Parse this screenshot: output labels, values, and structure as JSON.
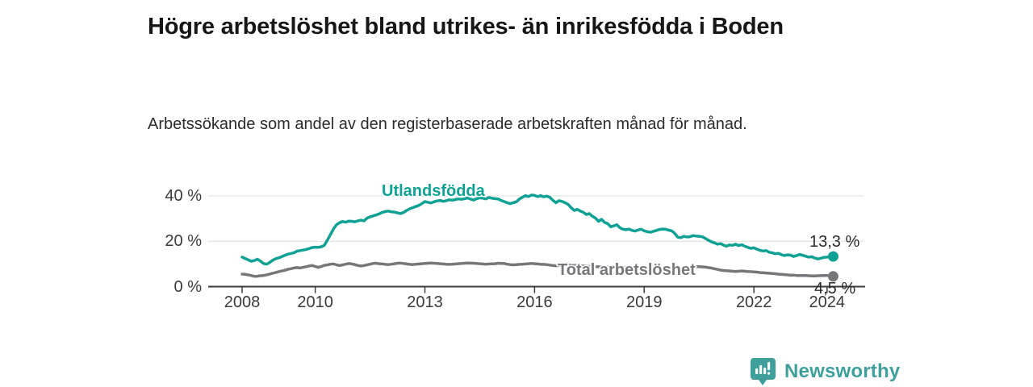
{
  "header": {
    "title": "Högre arbetslöshet bland utrikes- än inrikesfödda i Boden",
    "subtitle": "Arbetssökande som andel av den registerbaserade arbetskraften månad för månad."
  },
  "chart_data": {
    "type": "line",
    "title": "Högre arbetslöshet bland utrikes- än inrikesfödda i Boden",
    "xlabel": "",
    "ylabel": "",
    "unit": "%",
    "grid": "horizontal-gridlines-at-20-and-40",
    "legend_position": "inline-labels-on-lines",
    "xlim": [
      2007.2,
      2025.0
    ],
    "ylim": [
      0,
      45
    ],
    "x_cadence": "monthly",
    "y_ticks": [
      {
        "value": 0,
        "label": "0 %"
      },
      {
        "value": 20,
        "label": "20 %"
      },
      {
        "value": 40,
        "label": "40 %"
      }
    ],
    "x_ticks": [
      {
        "value": 2008,
        "label": "2008"
      },
      {
        "value": 2010,
        "label": "2010"
      },
      {
        "value": 2013,
        "label": "2013"
      },
      {
        "value": 2016,
        "label": "2016"
      },
      {
        "value": 2019,
        "label": "2019"
      },
      {
        "value": 2022,
        "label": "2022"
      },
      {
        "value": 2024,
        "label": "2024"
      }
    ],
    "series": [
      {
        "id": "utlandsfodda",
        "name": "Utlandsfödda",
        "color": "#0fa294",
        "end_label": "13,3 %",
        "end_value": 13.3,
        "x_start": 2008.0,
        "values": [
          13.0,
          12.4,
          11.8,
          11.2,
          11.5,
          12.1,
          11.3,
          10.2,
          9.9,
          10.6,
          11.6,
          12.3,
          12.7,
          13.2,
          13.8,
          14.3,
          14.6,
          14.9,
          15.6,
          15.9,
          16.1,
          16.4,
          16.8,
          17.2,
          17.4,
          17.3,
          17.6,
          18.2,
          20.5,
          23.0,
          25.5,
          27.3,
          28.2,
          28.7,
          28.4,
          28.9,
          28.8,
          28.6,
          29.0,
          29.3,
          29.0,
          30.2,
          30.8,
          31.2,
          31.6,
          32.1,
          32.7,
          33.1,
          33.3,
          33.0,
          32.9,
          32.5,
          32.2,
          32.7,
          33.6,
          34.3,
          34.8,
          35.3,
          35.8,
          36.6,
          37.5,
          37.2,
          36.9,
          37.4,
          37.8,
          38.0,
          37.6,
          37.9,
          38.3,
          38.1,
          38.4,
          38.7,
          38.5,
          38.8,
          39.1,
          38.6,
          38.2,
          38.8,
          39.2,
          39.0,
          38.7,
          39.3,
          39.0,
          38.8,
          38.7,
          38.0,
          37.5,
          37.0,
          36.6,
          37.0,
          37.4,
          38.6,
          39.4,
          40.1,
          39.7,
          40.4,
          40.2,
          39.7,
          40.1,
          39.6,
          39.9,
          39.4,
          38.1,
          37.0,
          37.9,
          37.6,
          37.0,
          36.3,
          34.8,
          33.6,
          34.1,
          33.3,
          32.8,
          31.8,
          32.2,
          31.0,
          30.2,
          28.8,
          29.7,
          28.3,
          27.8,
          26.4,
          26.8,
          27.3,
          26.0,
          25.3,
          25.1,
          25.4,
          24.8,
          24.5,
          25.0,
          25.3,
          24.6,
          24.2,
          24.0,
          24.4,
          24.8,
          25.2,
          25.4,
          25.3,
          24.9,
          24.6,
          23.5,
          21.8,
          21.6,
          22.2,
          21.9,
          22.0,
          22.5,
          22.3,
          22.2,
          22.0,
          21.3,
          20.5,
          19.8,
          19.3,
          18.7,
          19.0,
          18.3,
          17.8,
          18.4,
          18.2,
          18.7,
          18.1,
          18.5,
          17.8,
          17.3,
          16.9,
          17.1,
          16.5,
          16.0,
          15.7,
          15.9,
          15.2,
          14.9,
          14.5,
          14.7,
          14.1,
          13.7,
          14.0,
          13.9,
          13.3,
          13.7,
          14.2,
          13.8,
          13.4,
          13.0,
          13.2,
          12.6,
          12.2,
          12.5,
          12.9,
          13.0,
          13.2,
          13.3
        ]
      },
      {
        "id": "total",
        "name": "Total arbetslöshet",
        "color": "#77777b",
        "end_label": "4,5 %",
        "end_value": 4.5,
        "x_start": 2008.0,
        "values": [
          5.5,
          5.4,
          5.2,
          4.9,
          4.5,
          4.6,
          4.8,
          4.9,
          5.2,
          5.5,
          5.9,
          6.2,
          6.6,
          6.9,
          7.2,
          7.6,
          7.9,
          8.2,
          8.4,
          8.2,
          8.5,
          8.8,
          9.1,
          9.3,
          8.9,
          8.5,
          8.9,
          9.4,
          9.6,
          9.9,
          10.0,
          9.6,
          9.3,
          9.6,
          9.9,
          10.2,
          10.0,
          9.7,
          9.3,
          9.1,
          9.3,
          9.6,
          9.9,
          10.2,
          10.3,
          10.1,
          10.0,
          9.8,
          9.7,
          9.9,
          10.1,
          10.3,
          10.4,
          10.2,
          10.0,
          9.8,
          9.7,
          9.9,
          10.0,
          10.1,
          10.2,
          10.3,
          10.4,
          10.3,
          10.2,
          10.1,
          10.0,
          9.9,
          9.8,
          9.9,
          10.0,
          10.1,
          10.2,
          10.3,
          10.4,
          10.35,
          10.3,
          10.2,
          10.1,
          10.0,
          9.9,
          10.0,
          10.05,
          10.1,
          10.3,
          10.25,
          10.2,
          9.9,
          9.7,
          9.6,
          9.7,
          9.8,
          9.9,
          10.0,
          10.1,
          10.2,
          10.1,
          10.0,
          9.9,
          9.8,
          9.7,
          9.5,
          9.3,
          9.2,
          9.3,
          9.4,
          9.45,
          9.5,
          9.4,
          9.35,
          9.3,
          9.2,
          9.1,
          9.0,
          8.9,
          8.85,
          8.8,
          8.75,
          8.7,
          8.65,
          8.6,
          8.55,
          8.5,
          8.5,
          8.45,
          8.4,
          8.4,
          8.35,
          8.3,
          8.3,
          8.25,
          8.2,
          8.2,
          8.15,
          8.1,
          8.1,
          8.0,
          8.0,
          8.0,
          8.05,
          8.1,
          8.1,
          8.05,
          8.0,
          8.0,
          8.2,
          8.4,
          8.6,
          8.7,
          8.8,
          8.8,
          8.7,
          8.6,
          8.4,
          8.2,
          7.9,
          7.6,
          7.3,
          7.1,
          7.0,
          6.9,
          6.8,
          6.7,
          6.8,
          6.9,
          6.8,
          6.7,
          6.6,
          6.5,
          6.4,
          6.2,
          6.1,
          6.0,
          5.9,
          5.8,
          5.7,
          5.5,
          5.4,
          5.3,
          5.2,
          5.0,
          5.1,
          4.9,
          4.9,
          4.9,
          4.9,
          4.8,
          4.7,
          4.7,
          4.8,
          4.85,
          4.9,
          4.9,
          4.7,
          4.5
        ]
      }
    ],
    "style": {
      "gridline_color": "#dcdcdc",
      "axis_color": "#3a3a3a",
      "line_width": 3.5,
      "end_dot_radius": 6.5
    }
  },
  "footer": {
    "brand": "Newsworthy",
    "brand_color": "#3f9f9a"
  }
}
